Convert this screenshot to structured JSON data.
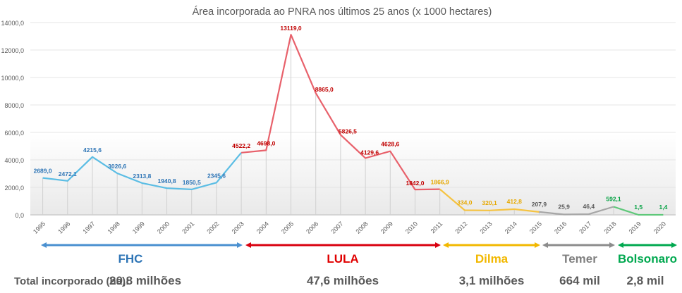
{
  "chart_data": {
    "type": "line",
    "title": "Área incorporada ao PNRA nos últimos 25 anos (x 1000 hectares)",
    "ylim": [
      0,
      14000
    ],
    "yticks": [
      "0,0",
      "2000,0",
      "4000,0",
      "6000,0",
      "8000,0",
      "10000,0",
      "12000,0",
      "14000,0"
    ],
    "ytick_values": [
      0,
      2000,
      4000,
      6000,
      8000,
      10000,
      12000,
      14000
    ],
    "grid": true,
    "categories": [
      "1995",
      "1996",
      "1997",
      "1998",
      "1999",
      "2000",
      "2001",
      "2002",
      "2003",
      "2004",
      "2005",
      "2006",
      "2007",
      "2008",
      "2009",
      "2010",
      "2011",
      "2012",
      "2013",
      "2014",
      "2015",
      "2016",
      "2017",
      "2018",
      "2019",
      "2020"
    ],
    "values": [
      2689.0,
      2472.1,
      4215.6,
      3026.6,
      2313.8,
      1940.8,
      1850.5,
      2345.6,
      4522.2,
      4698.0,
      13119.0,
      8865.0,
      5826.5,
      4129.6,
      4628.6,
      1842.0,
      1866.9,
      334.0,
      320.1,
      412.8,
      207.9,
      25.9,
      46.4,
      592.1,
      1.5,
      1.4
    ],
    "labels": [
      "2689,0",
      "2472,1",
      "4215,6",
      "3026,6",
      "2313,8",
      "1940,8",
      "1850,5",
      "2345,6",
      "4522,2",
      "4698,0",
      "13119,0",
      "8865,0",
      "5826,5",
      "4129,6",
      "4628,6",
      "1842,0",
      "1866,9",
      "334,0",
      "320,1",
      "412,8",
      "207,9",
      "25,9",
      "46,4",
      "592,1",
      "1,5",
      "1,4"
    ],
    "series": [
      {
        "name": "FHC",
        "color": "#5bbde4",
        "label_color": "#2e75b6",
        "start": 0,
        "end": 8
      },
      {
        "name": "LULA",
        "color": "#e8616b",
        "label_color": "#c00000",
        "start": 8,
        "end": 16
      },
      {
        "name": "Dilma",
        "color": "#f5c342",
        "label_color": "#e6a800",
        "start": 16,
        "end": 20
      },
      {
        "name": "Temer",
        "color": "#a6a6a6",
        "label_color": "#595959",
        "start": 20,
        "end": 23
      },
      {
        "name": "Bolsonaro",
        "color": "#5fc87a",
        "label_color": "#00a040",
        "start": 23,
        "end": 25
      }
    ]
  },
  "periods": [
    {
      "name": "FHC",
      "color": "#4a90d0",
      "text_color": "#2e75b6",
      "total": "20,8 milhões"
    },
    {
      "name": "LULA",
      "color": "#d9000f",
      "text_color": "#e00000",
      "total": "47,6 milhões"
    },
    {
      "name": "Dilma",
      "color": "#f2b800",
      "text_color": "#f2b800",
      "total": "3,1 milhões"
    },
    {
      "name": "Temer",
      "color": "#8c8c8c",
      "text_color": "#808080",
      "total": "664 mil"
    },
    {
      "name": "Bolsonaro",
      "color": "#00a84f",
      "text_color": "#00a84f",
      "total": "2,8 mil"
    }
  ],
  "total_label": "Total incorporado (ha):"
}
